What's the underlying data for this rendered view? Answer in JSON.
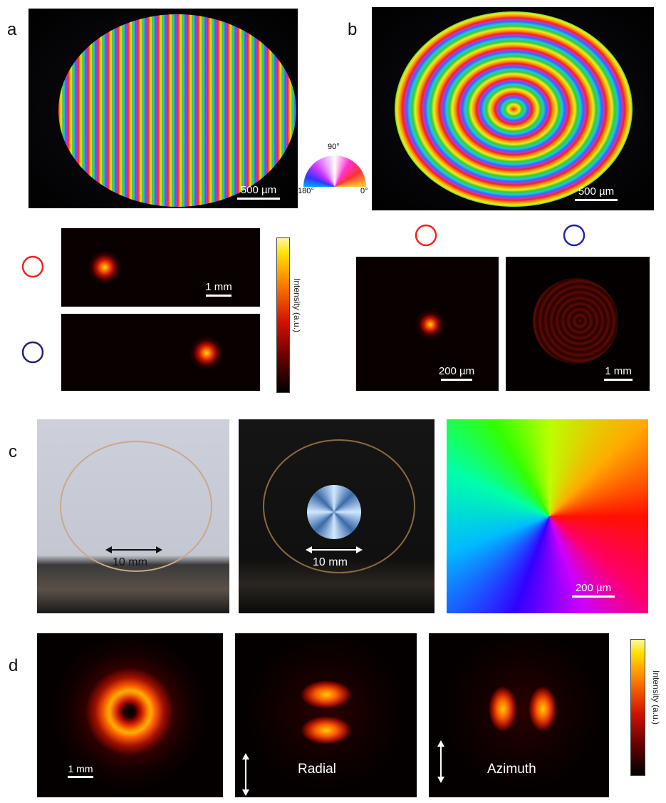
{
  "panels": {
    "a": {
      "label": "a",
      "scale_bar": "500 µm",
      "spot_scale_bar": "1 mm",
      "colorbar_label": "Intensity (a.u.)"
    },
    "phase_wheel": {
      "top": "90°",
      "left": "180°",
      "right": "0°"
    },
    "b": {
      "label": "b",
      "scale_bar": "500 µm",
      "left_spot_scale_bar": "200 µm",
      "right_spot_scale_bar": "1 mm"
    },
    "c": {
      "label": "c",
      "left_scale": "10 mm",
      "middle_scale": "10 mm",
      "right_scale_bar": "200 µm"
    },
    "d": {
      "label": "d",
      "scale_bar": "1 mm",
      "middle_caption": "Radial",
      "right_caption": "Azimuth",
      "colorbar_label": "Intensity (a.u.)"
    }
  }
}
